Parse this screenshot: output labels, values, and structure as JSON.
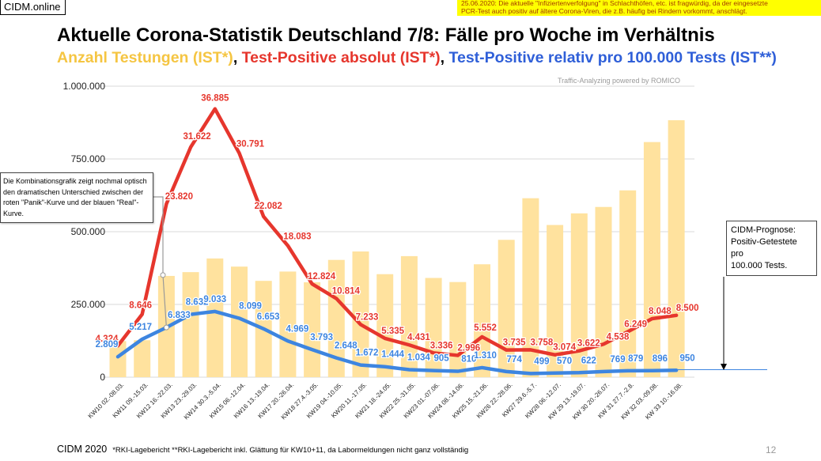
{
  "site_label": "CIDM.online",
  "notice": {
    "line1": "25.06.2020: Die aktuelle \"Infiziertenverfolgung\" in Schlachthöfen, etc. ist fragwürdig, da der eingesetzte",
    "line2": "PCR-Test auch positiv auf ältere Corona-Viren, die z.B. häufig bei Rindern vorkommt, anschlägt."
  },
  "title": "Aktuelle Corona-Statistik Deutschland 7/8: Fälle pro Woche im Verhältnis",
  "subtitle": {
    "part1": "Anzahl Testungen (IST*)",
    "sep1": ", ",
    "part2": "Test-Positive absolut (IST*)",
    "sep2": ", ",
    "part3": "Test-Positive relativ pro 100.000 Tests (IST**)"
  },
  "colors": {
    "tests": "#ffe29e",
    "positive_abs": "#e6362d",
    "positive_rel": "#3d85e0",
    "grid": "#d9d9d9",
    "title_yellow": "#f5c542"
  },
  "watermark": "Traffic-Analyzing powered by ROMICO",
  "callout_left": "Die Kombinationsgrafik zeigt nochmal optisch den dramatischen Unterschied zwischen der roten \"Panik\"-Kurve und der blauen \"Real\"-Kurve.",
  "callout_right": [
    "CIDM-Prognose:",
    "Positiv-Getestete",
    "pro",
    "100.000 Tests."
  ],
  "footer": {
    "brand": "CIDM 2020",
    "note": "*RKI-Lagebericht   **RKI-Lagebericht inkl. Glättung für KW10+11, da Labormeldungen nicht ganz vollständig"
  },
  "page_number": "12",
  "chart_data": {
    "type": "bar+line",
    "ylim": [
      0,
      1000000
    ],
    "yticks": [
      0,
      250000,
      500000,
      750000,
      1000000
    ],
    "ytick_labels": [
      "0",
      "250.000",
      "500.000",
      "750.000",
      "1.000.000"
    ],
    "grid": true,
    "categories": [
      "KW10 02.-08.03.",
      "KW11 09.-15.03.",
      "KW12 16.-22.03.",
      "KW13 23.-29.03.",
      "KW14 30.3.-5.04.",
      "KW15 06.-12.04.",
      "KW16 13.-19.04.",
      "KW17 20.-26.04.",
      "KW18 27.4.-3.05.",
      "KW19 04.-10.05.",
      "KW20 11.-17.05.",
      "KW21 18.-24.05.",
      "KW22 25.-31.05.",
      "KW23 01.-07.06.",
      "KW24 08.-14.06.",
      "KW25 15.-21.06.",
      "KW26 22.-28.06.",
      "KW27 29.6.-5.7.",
      "KW28 06.-12.07.",
      "KW 29 13.-19.07.",
      "KW 30 20.-26.07.",
      "KW 31 27.7.-2.8.",
      "KW 32 03.-09.08.",
      "KW 33 10.-16.08."
    ],
    "series": [
      {
        "name": "Anzahl Testungen",
        "kind": "bar",
        "values": [
          124000,
          127000,
          348000,
          361000,
          408000,
          380000,
          331000,
          363000,
          326000,
          403000,
          432000,
          354000,
          416000,
          341000,
          327000,
          388000,
          472000,
          615000,
          523000,
          563000,
          585000,
          642000,
          808000,
          883000
        ]
      },
      {
        "name": "Test-Positive absolut",
        "kind": "line",
        "values": [
          4324,
          8646,
          23820,
          31622,
          36885,
          30791,
          22082,
          18083,
          12824,
          10814,
          7233,
          5335,
          4431,
          3336,
          2996,
          5552,
          3735,
          3758,
          3074,
          3622,
          4538,
          6249,
          8048,
          8500
        ],
        "labels": [
          "4.324",
          "8.646",
          "23.820",
          "31.622",
          "36.885",
          "30.791",
          "22.082",
          "18.083",
          "12.824",
          "10.814",
          "7.233",
          "5.335",
          "4.431",
          "3.336",
          "2.996",
          "5.552",
          "3.735",
          "3.758",
          "3.074",
          "3.622",
          "4.538",
          "6.249",
          "8.048",
          "8.500"
        ]
      },
      {
        "name": "Test-Positive relativ pro 100.000 Tests",
        "kind": "line",
        "values": [
          2809,
          5217,
          6833,
          8632,
          9033,
          8099,
          6653,
          4969,
          3793,
          2648,
          1672,
          1444,
          1034,
          905,
          810,
          1310,
          774,
          499,
          570,
          622,
          769,
          879,
          896,
          950
        ],
        "labels": [
          "2.809",
          "5.217",
          "6.833",
          "8.632",
          "9.033",
          "8.099",
          "6.653",
          "4.969",
          "3.793",
          "2.648",
          "1.672",
          "1.444",
          "1.034",
          "905",
          "810",
          "1.310",
          "774",
          "499",
          "570",
          "622",
          "769",
          "879",
          "896",
          "950"
        ]
      }
    ]
  }
}
